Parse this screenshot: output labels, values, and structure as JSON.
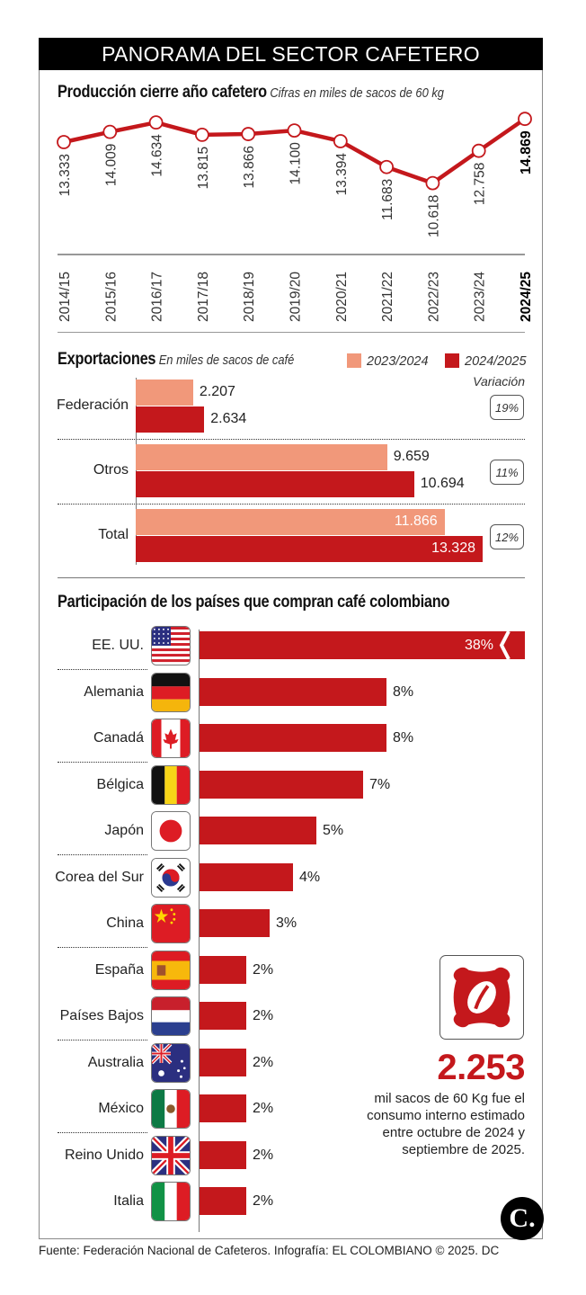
{
  "header": {
    "title": "PANORAMA DEL SECTOR CAFETERO"
  },
  "colors": {
    "accent": "#c4181c",
    "light": "#f1987a",
    "black": "#000000"
  },
  "production": {
    "title": "Producción cierre año cafetero",
    "subtitle": "Cifras en miles de sacos de 60 kg"
  },
  "exports": {
    "title": "Exportaciones",
    "subtitle": "En miles de sacos de café",
    "legend": [
      {
        "label": "2023/2024",
        "color": "#f1987a"
      },
      {
        "label": "2024/2025",
        "color": "#c4181c"
      }
    ],
    "variation_label": "Variación"
  },
  "countries_section": {
    "title": "Participación de los países que compran café colombiano"
  },
  "consumption": {
    "icon": "coffee-sack-icon",
    "value": "2.253",
    "text": "mil sacos de 60 Kg fue el consumo interno estimado entre octubre de 2024 y septiembre de 2025."
  },
  "logo": {
    "letter": "C."
  },
  "footer": {
    "source": "Fuente: Federación Nacional de Cafeteros. Infografía: EL COLOMBIANO © 2025. DC"
  },
  "chart_data": [
    {
      "type": "line",
      "title": "Producción cierre año cafetero",
      "subtitle": "Cifras en miles de sacos de 60 kg",
      "x": [
        "2014/15",
        "2015/16",
        "2016/17",
        "2017/18",
        "2018/19",
        "2019/20",
        "2020/21",
        "2021/22",
        "2022/23",
        "2023/24",
        "2024/25"
      ],
      "values": [
        13333,
        14009,
        14634,
        13815,
        13866,
        14100,
        13394,
        11683,
        10618,
        12758,
        14869
      ],
      "labels": [
        "13.333",
        "14.009",
        "14.634",
        "13.815",
        "13.866",
        "14.100",
        "13.394",
        "11.683",
        "10.618",
        "12.758",
        "14.869"
      ],
      "highlight": "2024/25",
      "ylim": [
        10000,
        15000
      ],
      "grid": false
    },
    {
      "type": "bar",
      "orientation": "horizontal",
      "title": "Exportaciones",
      "subtitle": "En miles de sacos de café",
      "categories": [
        "Federación",
        "Otros",
        "Total"
      ],
      "series": [
        {
          "name": "2023/2024",
          "values": [
            2207,
            9659,
            11866
          ],
          "labels": [
            "2.207",
            "9.659",
            "11.866"
          ]
        },
        {
          "name": "2024/2025",
          "values": [
            2634,
            10694,
            13328
          ],
          "labels": [
            "2.634",
            "10.694",
            "13.328"
          ]
        }
      ],
      "variation": [
        "19%",
        "11%",
        "12%"
      ],
      "legend": "top-right"
    },
    {
      "type": "bar",
      "orientation": "horizontal",
      "title": "Participación de los países que compran café colombiano",
      "categories": [
        "EE. UU.",
        "Alemania",
        "Canadá",
        "Bélgica",
        "Japón",
        "Corea del Sur",
        "China",
        "España",
        "Países Bajos",
        "Australia",
        "México",
        "Reino Unido",
        "Italia"
      ],
      "flags": [
        "us",
        "de",
        "ca",
        "be",
        "jp",
        "kr",
        "cn",
        "es",
        "nl",
        "au",
        "mx",
        "gb",
        "it"
      ],
      "values": [
        38,
        8,
        8,
        7,
        5,
        4,
        3,
        2,
        2,
        2,
        2,
        2,
        2
      ],
      "labels": [
        "38%",
        "8%",
        "8%",
        "7%",
        "5%",
        "4%",
        "3%",
        "2%",
        "2%",
        "2%",
        "2%",
        "2%",
        "2%"
      ],
      "unit": "%",
      "axis_break_on": "EE. UU."
    }
  ]
}
